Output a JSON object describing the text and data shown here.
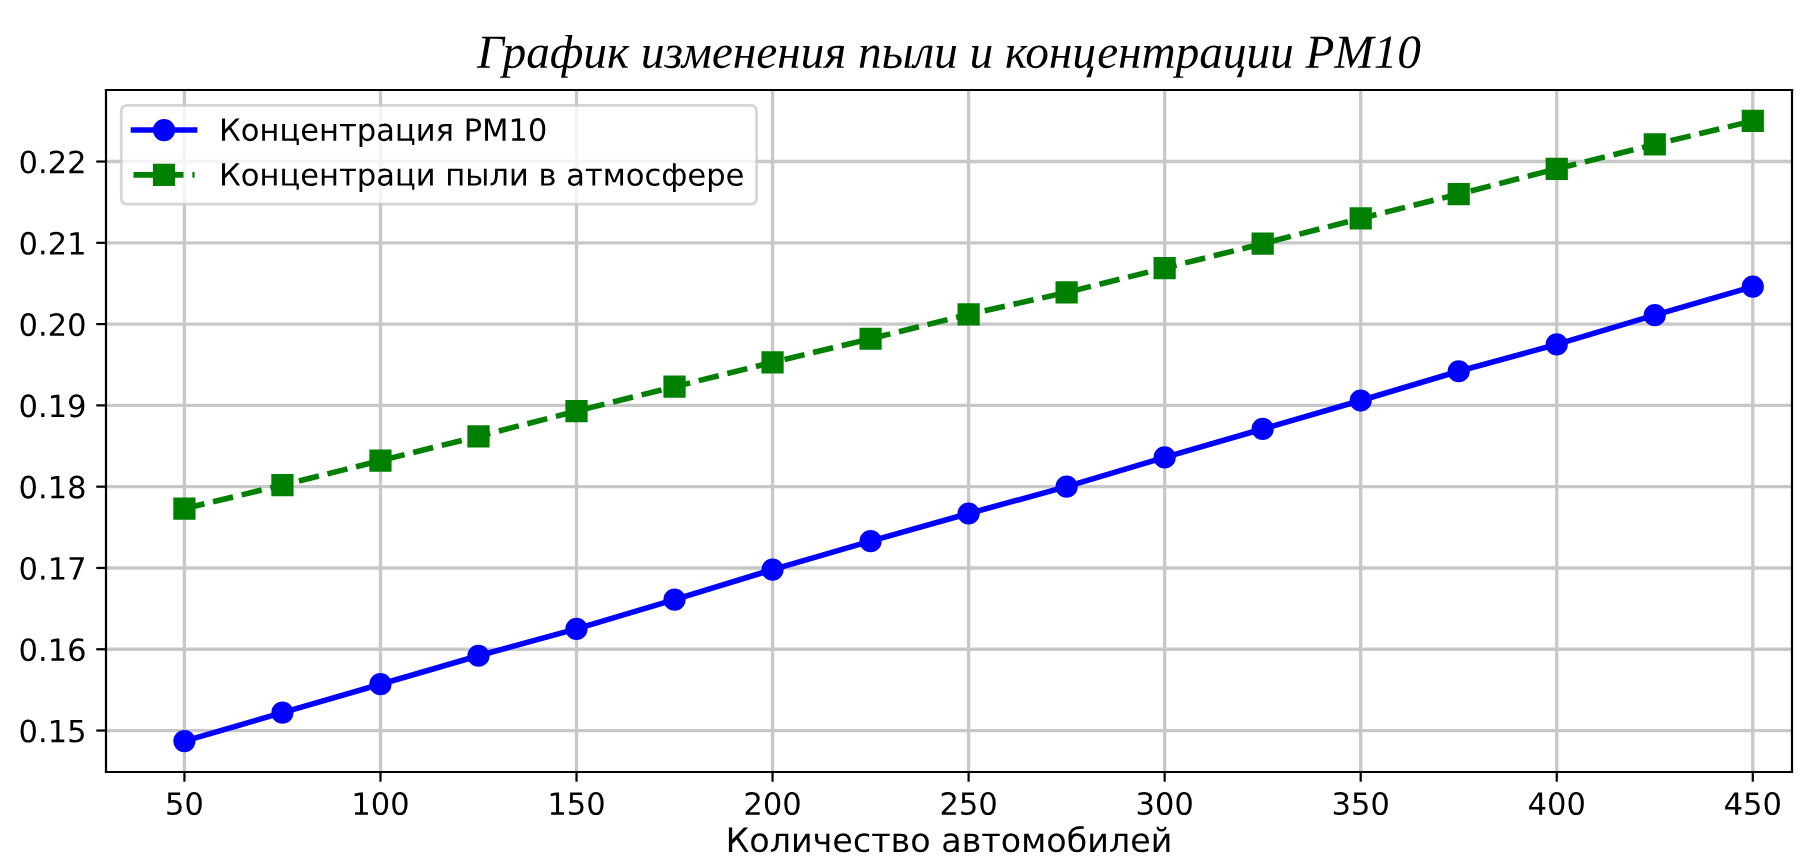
{
  "chart_data": {
    "type": "line",
    "title": "График изменения пыли и концентрации PM10",
    "xlabel": "Количество автомобилей",
    "x": [
      50,
      75,
      100,
      125,
      150,
      175,
      200,
      225,
      250,
      275,
      300,
      325,
      350,
      375,
      400,
      425,
      450
    ],
    "series": [
      {
        "name": "Концентрация PM10",
        "color": "#0000ff",
        "marker": "circle",
        "line_style": "solid",
        "values": [
          0.1487,
          0.1522,
          0.1557,
          0.1592,
          0.1625,
          0.1661,
          0.1698,
          0.1733,
          0.1767,
          0.18,
          0.1836,
          0.1871,
          0.1906,
          0.1942,
          0.1975,
          0.2011,
          0.2046
        ]
      },
      {
        "name": "Концентраци пыли в атмосфере",
        "color": "#008000",
        "marker": "square",
        "line_style": "dashed",
        "values": [
          0.1773,
          0.1802,
          0.1832,
          0.1862,
          0.1893,
          0.1923,
          0.1953,
          0.1982,
          0.2012,
          0.2039,
          0.2069,
          0.2099,
          0.213,
          0.216,
          0.2191,
          0.2221,
          0.225
        ]
      }
    ],
    "xlim": [
      30,
      460
    ],
    "xticks": [
      50,
      100,
      150,
      200,
      250,
      300,
      350,
      400,
      450
    ],
    "ylim": [
      0.1449,
      0.2288
    ],
    "yticks": [
      0.15,
      0.16,
      0.17,
      0.18,
      0.19,
      {
        "value": 0.2,
        "label": "0.20"
      },
      0.21,
      0.22
    ],
    "grid": true,
    "legend": "top left"
  }
}
